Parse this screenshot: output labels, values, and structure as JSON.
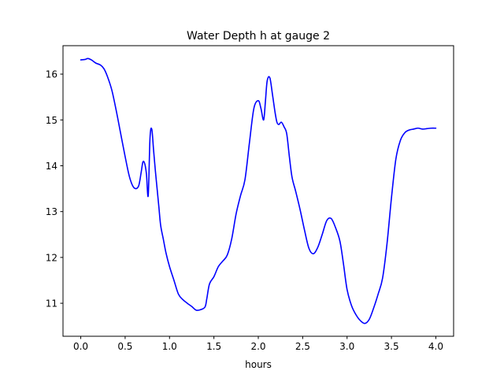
{
  "chart_data": {
    "type": "line",
    "title": "Water Depth h at gauge 2",
    "xlabel": "hours",
    "ylabel": "",
    "xlim": [
      -0.2,
      4.2
    ],
    "ylim": [
      10.28,
      16.62
    ],
    "xticks": [
      0.0,
      0.5,
      1.0,
      1.5,
      2.0,
      2.5,
      3.0,
      3.5,
      4.0
    ],
    "xtick_labels": [
      "0.0",
      "0.5",
      "1.0",
      "1.5",
      "2.0",
      "2.5",
      "3.0",
      "3.5",
      "4.0"
    ],
    "yticks": [
      11,
      12,
      13,
      14,
      15,
      16
    ],
    "ytick_labels": [
      "11",
      "12",
      "13",
      "14",
      "15",
      "16"
    ],
    "grid": false,
    "line_color": "#0000ff",
    "series": [
      {
        "x": [
          0.0,
          0.05,
          0.08,
          0.12,
          0.17,
          0.22,
          0.26,
          0.3,
          0.35,
          0.4,
          0.45,
          0.5,
          0.55,
          0.6,
          0.65,
          0.68,
          0.7,
          0.72,
          0.74,
          0.76,
          0.78,
          0.8,
          0.82,
          0.84,
          0.86,
          0.88,
          0.9,
          0.93,
          0.96,
          1.0,
          1.05,
          1.1,
          1.15,
          1.2,
          1.25,
          1.3,
          1.35,
          1.4,
          1.42,
          1.45,
          1.5,
          1.55,
          1.6,
          1.65,
          1.7,
          1.75,
          1.8,
          1.85,
          1.9,
          1.95,
          2.0,
          2.03,
          2.06,
          2.08,
          2.1,
          2.13,
          2.16,
          2.19,
          2.21,
          2.23,
          2.26,
          2.29,
          2.32,
          2.35,
          2.38,
          2.42,
          2.47,
          2.52,
          2.57,
          2.62,
          2.67,
          2.72,
          2.77,
          2.82,
          2.87,
          2.92,
          2.96,
          3.0,
          3.05,
          3.1,
          3.15,
          3.2,
          3.25,
          3.3,
          3.35,
          3.4,
          3.45,
          3.5,
          3.55,
          3.6,
          3.65,
          3.7,
          3.75,
          3.8,
          3.85,
          3.9,
          3.95,
          4.0
        ],
        "y": [
          16.31,
          16.32,
          16.34,
          16.31,
          16.24,
          16.2,
          16.12,
          15.95,
          15.65,
          15.2,
          14.7,
          14.2,
          13.75,
          13.52,
          13.55,
          13.85,
          14.08,
          14.05,
          13.82,
          13.35,
          14.6,
          14.8,
          14.35,
          13.9,
          13.5,
          13.1,
          12.7,
          12.4,
          12.1,
          11.8,
          11.5,
          11.2,
          11.08,
          11.0,
          10.93,
          10.85,
          10.86,
          10.92,
          11.1,
          11.42,
          11.58,
          11.8,
          11.92,
          12.05,
          12.4,
          12.95,
          13.35,
          13.7,
          14.5,
          15.25,
          15.42,
          15.25,
          15.0,
          15.4,
          15.85,
          15.92,
          15.55,
          15.15,
          14.95,
          14.9,
          14.95,
          14.85,
          14.7,
          14.2,
          13.75,
          13.45,
          13.05,
          12.6,
          12.2,
          12.08,
          12.22,
          12.5,
          12.8,
          12.85,
          12.65,
          12.35,
          11.85,
          11.3,
          10.95,
          10.75,
          10.62,
          10.56,
          10.65,
          10.9,
          11.2,
          11.55,
          12.3,
          13.3,
          14.15,
          14.55,
          14.72,
          14.78,
          14.8,
          14.82,
          14.8,
          14.81,
          14.82,
          14.82
        ]
      }
    ]
  }
}
